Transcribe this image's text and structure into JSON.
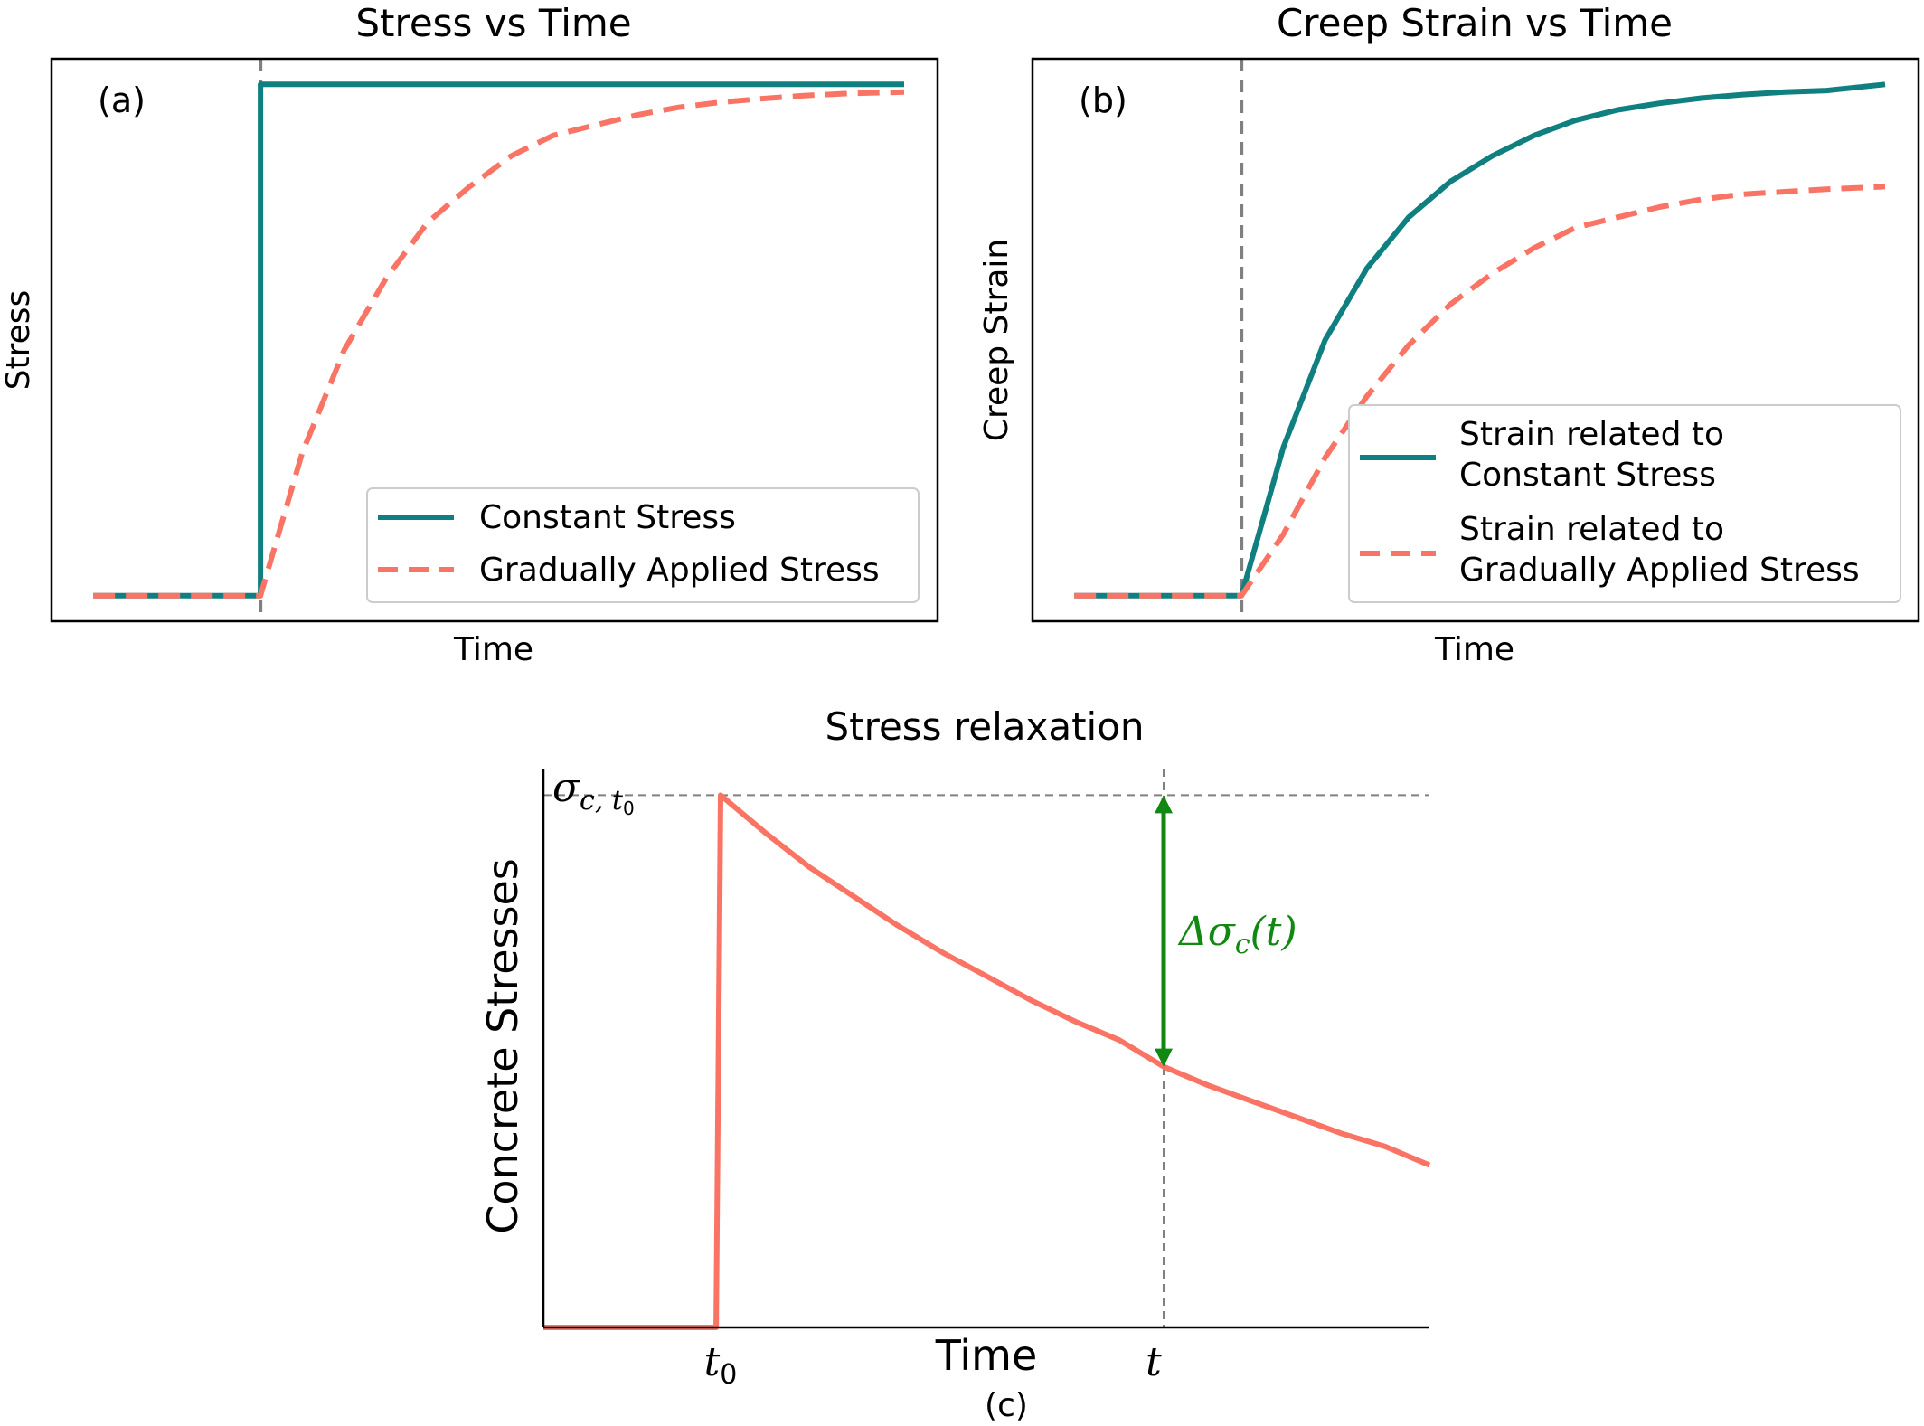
{
  "colors": {
    "constant": "#0f7f7f",
    "gradual": "#fa7465",
    "relaxation": "#fa7465",
    "reference_line": "#808080",
    "delta_arrow": "#118811"
  },
  "chart_data": [
    {
      "id": "a",
      "type": "line",
      "title": "Stress vs Time",
      "xlabel": "Time",
      "ylabel": "Stress",
      "panel_tag": "(a)",
      "ticks_visible": false,
      "grid": false,
      "legend_position": "lower-right",
      "xlim": [
        0,
        10.6
      ],
      "ylim": [
        -0.05,
        1.05
      ],
      "load_time": 2.5,
      "series": [
        {
          "name": "Constant Stress",
          "style": "solid",
          "x": [
            0.5,
            2.5,
            2.5,
            10.2
          ],
          "y": [
            0,
            0,
            1,
            1
          ]
        },
        {
          "name": "Gradually Applied Stress",
          "style": "dashed",
          "x": [
            0.5,
            2.5,
            3.0,
            3.5,
            4.0,
            4.5,
            5.0,
            5.5,
            6.0,
            6.5,
            7.0,
            7.5,
            8.0,
            8.5,
            9.0,
            9.5,
            10.2
          ],
          "y": [
            0,
            0,
            0.28,
            0.48,
            0.62,
            0.73,
            0.8,
            0.86,
            0.9,
            0.92,
            0.94,
            0.955,
            0.965,
            0.972,
            0.978,
            0.982,
            0.985
          ]
        }
      ]
    },
    {
      "id": "b",
      "type": "line",
      "title": "Creep Strain vs Time",
      "xlabel": "Time",
      "ylabel": "Creep Strain",
      "panel_tag": "(b)",
      "ticks_visible": false,
      "grid": false,
      "legend_position": "lower-right",
      "xlim": [
        0,
        10.6
      ],
      "ylim": [
        -0.05,
        1.05
      ],
      "load_time": 2.5,
      "series": [
        {
          "name": "Strain related to Constant Stress",
          "legend_lines": [
            "Strain related to",
            "Constant Stress"
          ],
          "style": "solid",
          "x": [
            0.5,
            2.5,
            3.0,
            3.5,
            4.0,
            4.5,
            5.0,
            5.5,
            6.0,
            6.5,
            7.0,
            7.5,
            8.0,
            8.5,
            9.0,
            9.5,
            10.2
          ],
          "y": [
            0,
            0,
            0.29,
            0.5,
            0.64,
            0.74,
            0.81,
            0.86,
            0.9,
            0.93,
            0.95,
            0.963,
            0.973,
            0.98,
            0.985,
            0.988,
            1.0
          ]
        },
        {
          "name": "Strain related to Gradually Applied Stress",
          "legend_lines": [
            "Strain related to",
            "Gradually Applied Stress"
          ],
          "style": "dashed",
          "x": [
            0.5,
            2.5,
            3.0,
            3.5,
            4.0,
            4.5,
            5.0,
            5.5,
            6.0,
            6.5,
            7.0,
            7.5,
            8.0,
            8.5,
            9.0,
            9.5,
            10.2
          ],
          "y": [
            0,
            0,
            0.12,
            0.27,
            0.39,
            0.49,
            0.57,
            0.63,
            0.68,
            0.72,
            0.74,
            0.76,
            0.775,
            0.785,
            0.79,
            0.795,
            0.8
          ]
        }
      ]
    },
    {
      "id": "c",
      "type": "line",
      "title": "Stress relaxation",
      "xlabel": "Time",
      "ylabel": "Concrete Stresses",
      "panel_tag": "(c)",
      "ticks_visible": false,
      "grid": false,
      "xlim": [
        0,
        10
      ],
      "ylim": [
        0,
        1.05
      ],
      "x_tick_labels": [
        {
          "x": 2.0,
          "base": "t",
          "sub": "0"
        },
        {
          "x": 7.0,
          "base": "t",
          "sub": ""
        }
      ],
      "y_tick_labels": [
        {
          "y": 1.0,
          "base": "σ",
          "sub": "c, t",
          "subsub": "0"
        }
      ],
      "reference_lines": {
        "x": 7.0,
        "y": 1.0
      },
      "annotation": {
        "label": "Δσc(t)",
        "label_parts": {
          "prefix": "Δσ",
          "sub": "c",
          "suffix": "(t)"
        },
        "x": 7.0,
        "y_from": 1.0,
        "y_to": 0.49
      },
      "series": [
        {
          "name": "",
          "style": "solid",
          "x": [
            0,
            1.95,
            2.0,
            2.5,
            3.0,
            3.5,
            4.0,
            4.5,
            5.0,
            5.5,
            6.0,
            6.5,
            7.0,
            7.5,
            8.0,
            8.5,
            9.0,
            9.5,
            10.0
          ],
          "y": [
            0,
            0,
            1.0,
            0.93,
            0.865,
            0.81,
            0.755,
            0.705,
            0.66,
            0.615,
            0.575,
            0.54,
            0.49,
            0.455,
            0.425,
            0.395,
            0.365,
            0.34,
            0.305
          ]
        }
      ]
    }
  ]
}
